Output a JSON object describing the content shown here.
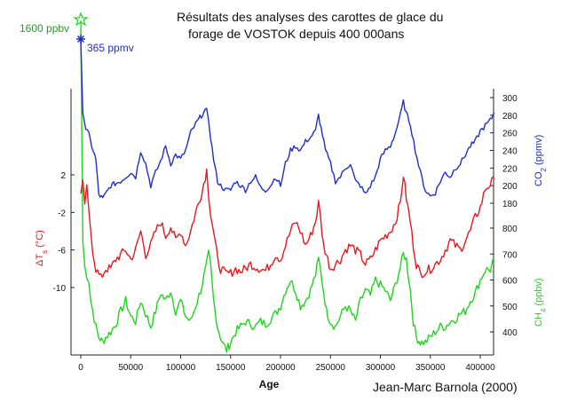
{
  "chart_data": {
    "type": "line",
    "title_line1": "Résultats des analyses des carottes de glace du",
    "title_line2": "forage de VOSTOK depuis 400 000ans",
    "credit": "Jean-Marc Barnola (2000)",
    "xlabel": "Age",
    "x_ticks": [
      "0",
      "50000",
      "100000",
      "150000",
      "200000",
      "250000",
      "300000",
      "350000",
      "400000"
    ],
    "xlim": [
      -5000,
      420000
    ],
    "annotations": {
      "ch4_modern": "1600 ppbv",
      "co2_modern": "365 ppmv"
    },
    "colors": {
      "co2": "#1f2fc8",
      "temp": "#e8181f",
      "ch4": "#1fd51f",
      "ch4_label": "#2a9a2a"
    },
    "axes": {
      "temp": {
        "label_prefix": "ΔT",
        "label_sub": "s",
        "label_suffix": " (°C)",
        "ticks": [
          "2",
          "-2",
          "-6",
          "-10"
        ],
        "values": [
          2,
          -2,
          -6,
          -10
        ]
      },
      "co2": {
        "label_prefix": "CO",
        "label_sub": "2",
        "label_suffix": " (ppmv)",
        "ticks": [
          "300",
          "280",
          "260",
          "240",
          "220",
          "200",
          "180"
        ],
        "values": [
          300,
          280,
          260,
          240,
          220,
          200,
          180
        ]
      },
      "ch4": {
        "label_prefix": "CH",
        "label_sub": "4",
        "label_suffix": " (ppbv)",
        "ticks": [
          "800",
          "700",
          "600",
          "500",
          "400"
        ],
        "values": [
          800,
          700,
          600,
          500,
          400
        ]
      }
    },
    "series": [
      {
        "name": "CO2",
        "unit": "ppmv",
        "x": [
          0,
          2000,
          5000,
          8000,
          11000,
          15000,
          18000,
          22000,
          30000,
          40000,
          50000,
          55000,
          60000,
          65000,
          70000,
          75000,
          80000,
          85000,
          90000,
          95000,
          100000,
          105000,
          110000,
          115000,
          118000,
          122000,
          126000,
          128000,
          130000,
          133000,
          137000,
          140000,
          145000,
          150000,
          155000,
          160000,
          165000,
          170000,
          175000,
          180000,
          185000,
          190000,
          195000,
          200000,
          205000,
          210000,
          215000,
          220000,
          225000,
          230000,
          235000,
          238000,
          242000,
          245000,
          250000,
          255000,
          260000,
          265000,
          270000,
          275000,
          280000,
          285000,
          290000,
          295000,
          300000,
          305000,
          310000,
          315000,
          320000,
          323000,
          326000,
          330000,
          335000,
          340000,
          345000,
          350000,
          355000,
          360000,
          365000,
          370000,
          375000,
          380000,
          385000,
          390000,
          395000,
          400000,
          405000,
          410000,
          414000
        ],
        "values": [
          365,
          285,
          265,
          258,
          245,
          230,
          190,
          185,
          200,
          205,
          215,
          210,
          240,
          225,
          200,
          215,
          228,
          245,
          225,
          235,
          230,
          240,
          260,
          270,
          275,
          282,
          285,
          275,
          255,
          230,
          205,
          200,
          195,
          195,
          205,
          200,
          195,
          205,
          210,
          198,
          195,
          200,
          210,
          200,
          225,
          240,
          245,
          240,
          250,
          255,
          262,
          280,
          258,
          240,
          225,
          205,
          210,
          220,
          225,
          205,
          200,
          190,
          200,
          210,
          230,
          240,
          245,
          260,
          280,
          295,
          282,
          270,
          240,
          215,
          195,
          188,
          192,
          205,
          215,
          210,
          220,
          225,
          235,
          245,
          250,
          262,
          268,
          274,
          283
        ]
      },
      {
        "name": "Temperature",
        "unit": "°C",
        "x": [
          0,
          2000,
          4000,
          6000,
          8000,
          10000,
          12000,
          15000,
          20000,
          25000,
          30000,
          35000,
          40000,
          45000,
          50000,
          55000,
          60000,
          65000,
          70000,
          75000,
          80000,
          85000,
          90000,
          95000,
          100000,
          105000,
          110000,
          115000,
          118000,
          122000,
          126000,
          128000,
          130000,
          133000,
          137000,
          140000,
          145000,
          150000,
          155000,
          160000,
          165000,
          170000,
          175000,
          180000,
          185000,
          190000,
          195000,
          200000,
          205000,
          210000,
          215000,
          220000,
          225000,
          230000,
          235000,
          238000,
          240000,
          243000,
          246000,
          250000,
          255000,
          260000,
          265000,
          270000,
          275000,
          280000,
          285000,
          290000,
          295000,
          300000,
          305000,
          310000,
          315000,
          320000,
          323000,
          326000,
          330000,
          333000,
          336000,
          340000,
          345000,
          350000,
          355000,
          360000,
          365000,
          370000,
          375000,
          380000,
          385000,
          390000,
          395000,
          400000,
          405000,
          410000,
          414000
        ],
        "values": [
          0,
          1,
          -1,
          0.5,
          -2,
          -4,
          -6,
          -8,
          -9,
          -8,
          -8,
          -7,
          -6.5,
          -6,
          -7,
          -6,
          -4,
          -6.5,
          -5.5,
          -4,
          -3,
          -4.5,
          -3.5,
          -5,
          -4,
          -5.5,
          -4,
          -2,
          -1,
          0.5,
          2.5,
          0,
          -2,
          -4,
          -7,
          -8,
          -8.5,
          -8.5,
          -8,
          -8.3,
          -8,
          -7.5,
          -7.8,
          -8,
          -8.2,
          -7.5,
          -6.5,
          -7,
          -5.5,
          -4,
          -3,
          -4,
          -5.5,
          -4.5,
          -3,
          -1,
          -2.5,
          -5.5,
          -6.5,
          -8,
          -7.5,
          -7,
          -6,
          -5.5,
          -6,
          -6.5,
          -7.5,
          -7,
          -6,
          -5,
          -4.5,
          -4,
          -3,
          -1,
          2,
          -0.5,
          -3,
          -5.5,
          -7.5,
          -8.5,
          -8.3,
          -8,
          -7.5,
          -7,
          -6,
          -5,
          -5.5,
          -6,
          -5,
          -4,
          -2.5,
          -1.5,
          0.5,
          1,
          1.5
        ]
      },
      {
        "name": "CH4",
        "unit": "ppbv",
        "x": [
          0,
          2000,
          4000,
          6000,
          8000,
          10000,
          12000,
          15000,
          18000,
          22000,
          25000,
          30000,
          35000,
          40000,
          45000,
          50000,
          55000,
          60000,
          65000,
          70000,
          75000,
          80000,
          85000,
          90000,
          95000,
          100000,
          105000,
          110000,
          115000,
          120000,
          125000,
          128000,
          130000,
          133000,
          137000,
          140000,
          143000,
          146000,
          150000,
          155000,
          160000,
          165000,
          170000,
          175000,
          180000,
          185000,
          190000,
          195000,
          200000,
          205000,
          210000,
          215000,
          220000,
          225000,
          230000,
          235000,
          238000,
          240000,
          243000,
          246000,
          250000,
          255000,
          260000,
          265000,
          270000,
          275000,
          280000,
          285000,
          290000,
          295000,
          300000,
          305000,
          310000,
          315000,
          320000,
          323000,
          326000,
          330000,
          333000,
          336000,
          340000,
          345000,
          350000,
          355000,
          360000,
          365000,
          370000,
          375000,
          380000,
          385000,
          390000,
          395000,
          400000,
          405000,
          410000,
          414000
        ],
        "values": [
          1600,
          750,
          650,
          620,
          600,
          520,
          480,
          420,
          380,
          360,
          380,
          400,
          430,
          480,
          520,
          460,
          440,
          520,
          470,
          420,
          480,
          550,
          520,
          560,
          480,
          520,
          460,
          440,
          500,
          560,
          640,
          700,
          650,
          520,
          420,
          380,
          350,
          330,
          360,
          400,
          420,
          440,
          430,
          420,
          440,
          430,
          450,
          470,
          500,
          560,
          600,
          560,
          500,
          520,
          560,
          620,
          680,
          640,
          560,
          480,
          440,
          420,
          460,
          500,
          480,
          440,
          520,
          560,
          540,
          600,
          580,
          560,
          520,
          580,
          650,
          700,
          680,
          560,
          440,
          380,
          360,
          360,
          380,
          400,
          420,
          420,
          440,
          450,
          470,
          480,
          520,
          550,
          600,
          640,
          640,
          680
        ]
      }
    ]
  }
}
